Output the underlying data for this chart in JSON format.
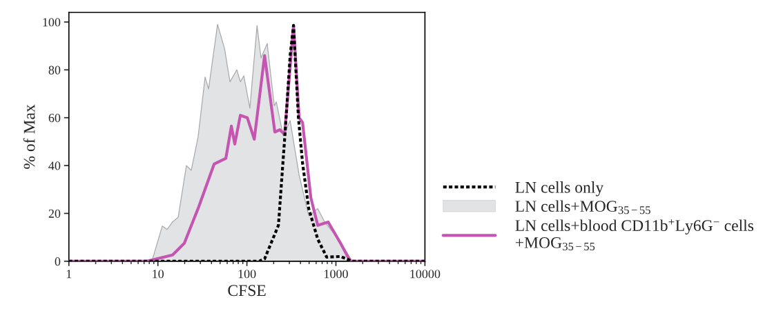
{
  "chart_data": {
    "type": "line",
    "xlabel": "CFSE",
    "ylabel": "% of Max",
    "log": "x",
    "xlim": [
      1,
      10000
    ],
    "xticks": [
      1,
      10,
      100,
      1000,
      10000
    ],
    "ylim": [
      0,
      104
    ],
    "yticks": [
      0,
      20,
      40,
      60,
      80,
      100
    ],
    "grid": false,
    "legend": "right",
    "series": [
      {
        "name": "LN cells only",
        "line_style": "dotted",
        "color": "#000000",
        "x": [
          1,
          137,
          158,
          226,
          270,
          306,
          334,
          379,
          422,
          495,
          625,
          789,
          1128,
          1528,
          10000
        ],
        "values": [
          0,
          0,
          1,
          15,
          55,
          86,
          98.6,
          60,
          41,
          22,
          9.2,
          1.7,
          2,
          0,
          0
        ]
      },
      {
        "name": "LN cells+MOG$_{35−55}$",
        "type": "area",
        "color": "#e2e3e4",
        "x": [
          1,
          7.8,
          8.55,
          11.2,
          12.7,
          14.6,
          16.9,
          20.9,
          23.7,
          28.3,
          33.9,
          37.1,
          46.8,
          56,
          64.5,
          77.1,
          84.4,
          92.3,
          108,
          130,
          144,
          169,
          203,
          214,
          256,
          306,
          386,
          495,
          625,
          748,
          1069,
          1528,
          10000
        ],
        "values": [
          0,
          0,
          0,
          14.7,
          13.3,
          16.4,
          18.4,
          40,
          38,
          52,
          77,
          72,
          99,
          89,
          75,
          80,
          75,
          77.5,
          64,
          98.5,
          85,
          91,
          65,
          66.6,
          52.4,
          58.8,
          36,
          19,
          22,
          16.4,
          9.2,
          0,
          0
        ]
      },
      {
        "name": "LN cells+blood CD11b$^{+}$Ly6G$^{−}$ cells +MOG$_{35−55}$",
        "line_style": "solid",
        "color": "#c455b0",
        "x": [
          1,
          7.55,
          14.6,
          19.8,
          28.8,
          42.8,
          58,
          66.9,
          73.1,
          84.4,
          101,
          121,
          158,
          206,
          234,
          265,
          334,
          386,
          422,
          523,
          625,
          818,
          1128,
          1449,
          10000
        ],
        "values": [
          0,
          0,
          2.6,
          7.5,
          22.8,
          40.6,
          43,
          56.5,
          49,
          61,
          60,
          51,
          86,
          54,
          55,
          53,
          98.6,
          60,
          58,
          26.5,
          15,
          16.4,
          7.5,
          0,
          0
        ]
      }
    ]
  }
}
